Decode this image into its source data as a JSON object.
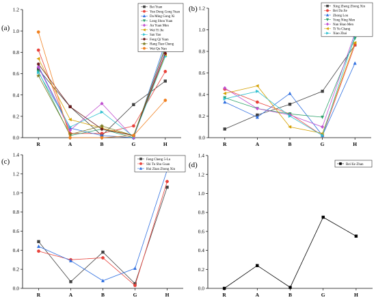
{
  "chart_data": [
    {
      "panel_label": "(a)",
      "type": "line",
      "categories": [
        "R",
        "A",
        "B",
        "G",
        "H"
      ],
      "ylim": [
        0,
        1.2
      ],
      "yticks": [
        "0.0",
        "0.2",
        "0.4",
        "0.6",
        "0.8",
        "1.0",
        "1.2"
      ],
      "legend_position": "top-right",
      "series": [
        {
          "name": "Bei Yuan",
          "color": "#404040",
          "marker": "square",
          "values": [
            0.64,
            0.29,
            0.02,
            0.31,
            0.53
          ]
        },
        {
          "name": "Yun Dong Gong Yuan",
          "color": "#e8413a",
          "marker": "circle",
          "values": [
            0.82,
            0.04,
            0.04,
            0.11,
            0.62
          ]
        },
        {
          "name": "Da Ming Gong Xi",
          "color": "#2f6fe0",
          "marker": "triangle",
          "values": [
            0.67,
            0.09,
            0.02,
            0.0,
            0.89
          ]
        },
        {
          "name": "Long Shou Yuan",
          "color": "#2aa06a",
          "marker": "triangle-down",
          "values": [
            0.62,
            0.02,
            0.08,
            0.0,
            0.85
          ]
        },
        {
          "name": "An Yuan Men",
          "color": "#c050d0",
          "marker": "diamond",
          "values": [
            0.66,
            0.07,
            0.32,
            0.0,
            0.82
          ]
        },
        {
          "name": "Wei Yi Jie",
          "color": "#d4a000",
          "marker": "triangle-left",
          "values": [
            0.74,
            0.17,
            0.09,
            0.02,
            0.77
          ]
        },
        {
          "name": "San Yao",
          "color": "#30c0d0",
          "marker": "triangle-right",
          "values": [
            0.61,
            0.1,
            0.24,
            0.01,
            0.76
          ]
        },
        {
          "name": "Feng Qi Yuan",
          "color": "#6b1818",
          "marker": "hexagon",
          "values": [
            0.69,
            0.29,
            0.08,
            0.02,
            0.79
          ]
        },
        {
          "name": "Hang Tian Cheng",
          "color": "#7a7a20",
          "marker": "star",
          "values": [
            0.58,
            0.03,
            0.11,
            0.02,
            0.84
          ]
        },
        {
          "name": "Wei Qu Nan",
          "color": "#f08020",
          "marker": "circle",
          "values": [
            0.99,
            0.0,
            0.0,
            0.02,
            0.35
          ]
        }
      ]
    },
    {
      "panel_label": "(b)",
      "type": "line",
      "categories": [
        "R",
        "A",
        "B",
        "G",
        "H"
      ],
      "ylim": [
        0,
        1.2
      ],
      "yticks": [
        "0.0",
        "0.2",
        "0.4",
        "0.6",
        "0.8",
        "1.0",
        "1.2"
      ],
      "legend_position": "top-right",
      "series": [
        {
          "name": "Xing Zheng Zhong Xin",
          "color": "#404040",
          "marker": "square",
          "values": [
            0.08,
            0.21,
            0.31,
            0.43,
            0.86
          ]
        },
        {
          "name": "Bei Da Jie",
          "color": "#e8413a",
          "marker": "circle",
          "values": [
            0.45,
            0.33,
            0.22,
            0.02,
            0.86
          ]
        },
        {
          "name": "Zhong Lou",
          "color": "#2f6fe0",
          "marker": "triangle",
          "values": [
            0.33,
            0.19,
            0.41,
            0.02,
            0.69
          ]
        },
        {
          "name": "Yong Ning Men",
          "color": "#2aa06a",
          "marker": "triangle-down",
          "values": [
            0.37,
            0.27,
            0.22,
            0.19,
            0.92
          ]
        },
        {
          "name": "Nan Shao Men",
          "color": "#c050d0",
          "marker": "diamond",
          "values": [
            0.46,
            0.27,
            0.21,
            0.1,
            0.97
          ]
        },
        {
          "name": "Ti Yu Chang",
          "color": "#d4a000",
          "marker": "triangle-left",
          "values": [
            0.41,
            0.48,
            0.1,
            0.04,
            0.88
          ]
        },
        {
          "name": "Xiao Zhai",
          "color": "#30c0d0",
          "marker": "triangle-right",
          "values": [
            0.36,
            0.43,
            0.2,
            0.02,
            0.95
          ]
        }
      ]
    },
    {
      "panel_label": "(c)",
      "type": "line",
      "categories": [
        "R",
        "A",
        "B",
        "G",
        "H"
      ],
      "ylim": [
        0,
        1.4
      ],
      "yticks": [
        "0.0",
        "0.2",
        "0.4",
        "0.6",
        "0.8",
        "1.0",
        "1.2",
        "1.4"
      ],
      "legend_position": "top-right",
      "series": [
        {
          "name": "Feng Cheng 5-Lu",
          "color": "#404040",
          "marker": "square",
          "values": [
            0.49,
            0.07,
            0.38,
            0.05,
            1.06
          ]
        },
        {
          "name": "Shi Tu Shu Guan",
          "color": "#e8413a",
          "marker": "circle",
          "values": [
            0.39,
            0.3,
            0.32,
            0.03,
            1.12
          ]
        },
        {
          "name": "Hui Zhan Zhong Xin",
          "color": "#2f6fe0",
          "marker": "triangle",
          "values": [
            0.44,
            0.29,
            0.08,
            0.21,
            1.24
          ]
        }
      ]
    },
    {
      "panel_label": "(d)",
      "type": "line",
      "categories": [
        "R",
        "A",
        "B",
        "G",
        "H"
      ],
      "ylim": [
        0,
        1.4
      ],
      "yticks": [
        "0.0",
        "0.2",
        "0.4",
        "0.6",
        "0.8",
        "1.0",
        "1.2",
        "1.4"
      ],
      "legend_position": "top-right",
      "series": [
        {
          "name": "Bei Ke Zhan",
          "color": "#000000",
          "marker": "square",
          "values": [
            0.0,
            0.24,
            0.01,
            0.75,
            0.55
          ]
        }
      ]
    }
  ]
}
